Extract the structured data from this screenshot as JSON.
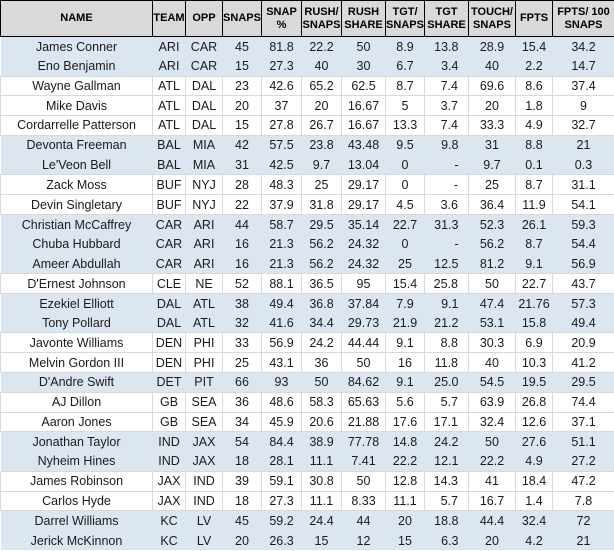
{
  "colors": {
    "header_bg": "#d9d9d9",
    "header_border": "#000000",
    "band_blue": "#dce6f1",
    "band_white": "#ffffff",
    "gridline": "#d9d9d9",
    "text": "#1a1a1a"
  },
  "table": {
    "columns": [
      {
        "key": "name",
        "lines": [
          "NAME"
        ]
      },
      {
        "key": "team",
        "lines": [
          "TEAM"
        ]
      },
      {
        "key": "opp",
        "lines": [
          "OPP"
        ]
      },
      {
        "key": "snaps",
        "lines": [
          "SNAPS"
        ]
      },
      {
        "key": "snap-pct",
        "lines": [
          "SNAP",
          "%"
        ]
      },
      {
        "key": "rush-snaps",
        "lines": [
          "RUSH/",
          "SNAPS"
        ]
      },
      {
        "key": "rush-share",
        "lines": [
          "RUSH",
          "SHARE"
        ]
      },
      {
        "key": "tgt-snaps",
        "lines": [
          "TGT/",
          "SNAPS"
        ]
      },
      {
        "key": "tgt-share",
        "lines": [
          "TGT",
          "SHARE"
        ]
      },
      {
        "key": "touch-snaps",
        "lines": [
          "TOUCH/",
          "SNAPS"
        ]
      },
      {
        "key": "fpts",
        "lines": [
          "FPTS"
        ]
      },
      {
        "key": "fpts-100-snaps",
        "lines": [
          "FPTS/ 100",
          "SNAPS"
        ]
      }
    ],
    "rows": [
      {
        "cells": [
          "James Conner",
          "ARI",
          "CAR",
          "45",
          "81.8",
          "22.2",
          "50",
          "8.9",
          "13.8",
          "28.9",
          "15.4",
          "34.2"
        ]
      },
      {
        "cells": [
          "Eno Benjamin",
          "ARI",
          "CAR",
          "15",
          "27.3",
          "40",
          "30",
          "6.7",
          "3.4",
          "40",
          "2.2",
          "14.7"
        ]
      },
      {
        "cells": [
          "Wayne Gallman",
          "ATL",
          "DAL",
          "23",
          "42.6",
          "65.2",
          "62.5",
          "8.7",
          "7.4",
          "69.6",
          "8.6",
          "37.4"
        ]
      },
      {
        "cells": [
          "Mike Davis",
          "ATL",
          "DAL",
          "20",
          "37",
          "20",
          "16.67",
          "5",
          "3.7",
          "20",
          "1.8",
          "9"
        ]
      },
      {
        "cells": [
          "Cordarrelle Patterson",
          "ATL",
          "DAL",
          "15",
          "27.8",
          "26.7",
          "16.67",
          "13.3",
          "7.4",
          "33.3",
          "4.9",
          "32.7"
        ]
      },
      {
        "cells": [
          "Devonta Freeman",
          "BAL",
          "MIA",
          "42",
          "57.5",
          "23.8",
          "43.48",
          "9.5",
          "9.8",
          "31",
          "8.8",
          "21"
        ]
      },
      {
        "cells": [
          "Le'Veon Bell",
          "BAL",
          "MIA",
          "31",
          "42.5",
          "9.7",
          "13.04",
          "0",
          "-",
          "9.7",
          "0.1",
          "0.3"
        ]
      },
      {
        "cells": [
          "Zack Moss",
          "BUF",
          "NYJ",
          "28",
          "48.3",
          "25",
          "29.17",
          "0",
          "-",
          "25",
          "8.7",
          "31.1"
        ]
      },
      {
        "cells": [
          "Devin Singletary",
          "BUF",
          "NYJ",
          "22",
          "37.9",
          "31.8",
          "29.17",
          "4.5",
          "3.6",
          "36.4",
          "11.9",
          "54.1"
        ]
      },
      {
        "cells": [
          "Christian McCaffrey",
          "CAR",
          "ARI",
          "44",
          "58.7",
          "29.5",
          "35.14",
          "22.7",
          "31.3",
          "52.3",
          "26.1",
          "59.3"
        ]
      },
      {
        "cells": [
          "Chuba Hubbard",
          "CAR",
          "ARI",
          "16",
          "21.3",
          "56.2",
          "24.32",
          "0",
          "-",
          "56.2",
          "8.7",
          "54.4"
        ]
      },
      {
        "cells": [
          "Ameer Abdullah",
          "CAR",
          "ARI",
          "16",
          "21.3",
          "56.2",
          "24.32",
          "25",
          "12.5",
          "81.2",
          "9.1",
          "56.9"
        ]
      },
      {
        "cells": [
          "D'Ernest Johnson",
          "CLE",
          "NE",
          "52",
          "88.1",
          "36.5",
          "95",
          "15.4",
          "25.8",
          "50",
          "22.7",
          "43.7"
        ]
      },
      {
        "cells": [
          "Ezekiel Elliott",
          "DAL",
          "ATL",
          "38",
          "49.4",
          "36.8",
          "37.84",
          "7.9",
          "9.1",
          "47.4",
          "21.76",
          "57.3"
        ]
      },
      {
        "cells": [
          "Tony Pollard",
          "DAL",
          "ATL",
          "32",
          "41.6",
          "34.4",
          "29.73",
          "21.9",
          "21.2",
          "53.1",
          "15.8",
          "49.4"
        ]
      },
      {
        "cells": [
          "Javonte Williams",
          "DEN",
          "PHI",
          "33",
          "56.9",
          "24.2",
          "44.44",
          "9.1",
          "8.8",
          "30.3",
          "6.9",
          "20.9"
        ]
      },
      {
        "cells": [
          "Melvin Gordon III",
          "DEN",
          "PHI",
          "25",
          "43.1",
          "36",
          "50",
          "16",
          "11.8",
          "40",
          "10.3",
          "41.2"
        ]
      },
      {
        "cells": [
          "D'Andre Swift",
          "DET",
          "PIT",
          "66",
          "93",
          "50",
          "84.62",
          "9.1",
          "25.0",
          "54.5",
          "19.5",
          "29.5"
        ]
      },
      {
        "cells": [
          "AJ Dillon",
          "GB",
          "SEA",
          "36",
          "48.6",
          "58.3",
          "65.63",
          "5.6",
          "5.7",
          "63.9",
          "26.8",
          "74.4"
        ]
      },
      {
        "cells": [
          "Aaron Jones",
          "GB",
          "SEA",
          "34",
          "45.9",
          "20.6",
          "21.88",
          "17.6",
          "17.1",
          "32.4",
          "12.6",
          "37.1"
        ]
      },
      {
        "cells": [
          "Jonathan Taylor",
          "IND",
          "JAX",
          "54",
          "84.4",
          "38.9",
          "77.78",
          "14.8",
          "24.2",
          "50",
          "27.6",
          "51.1"
        ]
      },
      {
        "cells": [
          "Nyheim Hines",
          "IND",
          "JAX",
          "18",
          "28.1",
          "11.1",
          "7.41",
          "22.2",
          "12.1",
          "22.2",
          "4.9",
          "27.2"
        ]
      },
      {
        "cells": [
          "James Robinson",
          "JAX",
          "IND",
          "39",
          "59.1",
          "30.8",
          "50",
          "12.8",
          "14.3",
          "41",
          "18.4",
          "47.2"
        ]
      },
      {
        "cells": [
          "Carlos Hyde",
          "JAX",
          "IND",
          "18",
          "27.3",
          "11.1",
          "8.33",
          "11.1",
          "5.7",
          "16.7",
          "1.4",
          "7.8"
        ]
      },
      {
        "cells": [
          "Darrel Williams",
          "KC",
          "LV",
          "45",
          "59.2",
          "24.4",
          "44",
          "20",
          "18.8",
          "44.4",
          "32.4",
          "72"
        ]
      },
      {
        "cells": [
          "Jerick McKinnon",
          "KC",
          "LV",
          "20",
          "26.3",
          "15",
          "12",
          "15",
          "6.3",
          "20",
          "4.2",
          "21"
        ]
      }
    ]
  }
}
